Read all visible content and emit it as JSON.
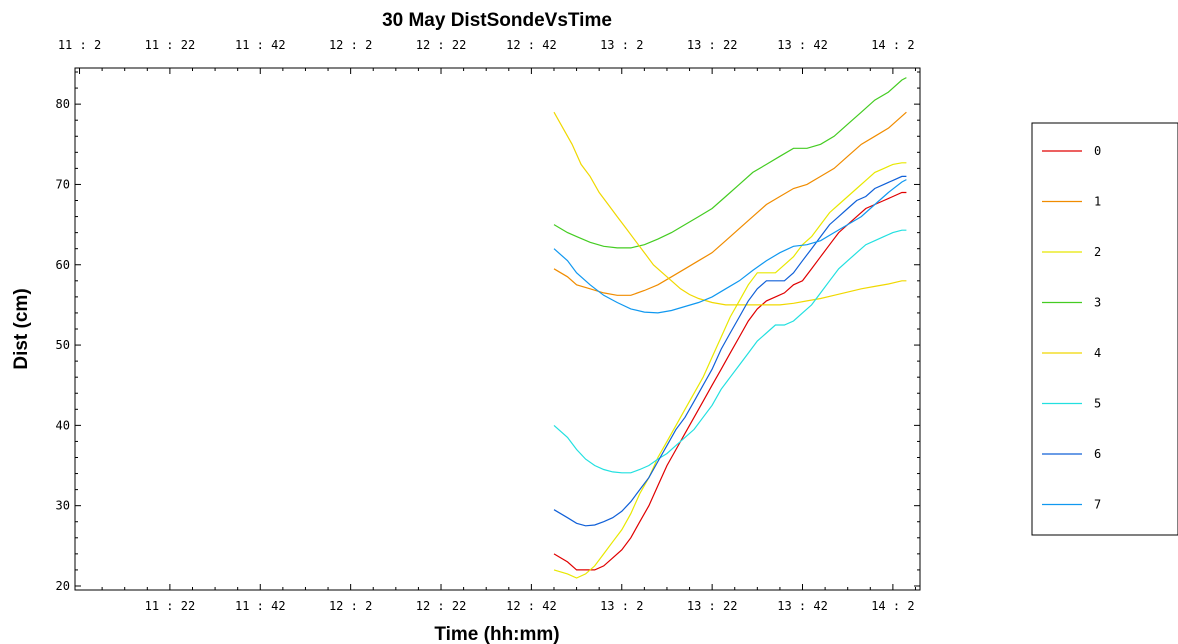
{
  "chart_data": {
    "type": "line",
    "title": "30 May DistSondeVsTime",
    "xlabel": "Time (hh:mm)",
    "ylabel": "Dist (cm)",
    "x_tick_labels": [
      "11 : 22",
      "11 : 42",
      "12 : 2",
      "12 : 22",
      "12 : 42",
      "13 : 2",
      "13 : 22",
      "13 : 42",
      "14 : 2"
    ],
    "x_tick_labels_top": [
      "11 : 2",
      "11 : 22",
      "11 : 42",
      "12 : 2",
      "12 : 22",
      "12 : 42",
      "13 : 2",
      "13 : 22",
      "13 : 42",
      "14 : 2"
    ],
    "y_tick_labels": [
      "20",
      "30",
      "40",
      "50",
      "60",
      "70",
      "80"
    ],
    "xlim": [
      "11:01",
      "14:08"
    ],
    "ylim": [
      19.5,
      84.5
    ],
    "grid": false,
    "legend_position": "right",
    "series": [
      {
        "name": "0",
        "color": "#e00000",
        "x": [
          "12:47",
          "12:50",
          "12:52",
          "12:54",
          "12:56",
          "12:58",
          "13:00",
          "13:02",
          "13:04",
          "13:06",
          "13:08",
          "13:10",
          "13:12",
          "13:14",
          "13:16",
          "13:18",
          "13:20",
          "13:22",
          "13:24",
          "13:26",
          "13:28",
          "13:30",
          "13:32",
          "13:34",
          "13:36",
          "13:38",
          "13:40",
          "13:42",
          "13:44",
          "13:46",
          "13:48",
          "13:50",
          "13:52",
          "13:54",
          "13:56",
          "13:58",
          "14:00",
          "14:02",
          "14:04",
          "14:05"
        ],
        "y": [
          24,
          23,
          22,
          22,
          22,
          22.5,
          23.5,
          24.5,
          26,
          28,
          30,
          32.5,
          35,
          37,
          39,
          41,
          43,
          45,
          47,
          49,
          51,
          53,
          54.5,
          55.5,
          56,
          56.5,
          57.5,
          58,
          59.5,
          61,
          62.5,
          64,
          65,
          66,
          67,
          67.5,
          68,
          68.5,
          69,
          69
        ]
      },
      {
        "name": "1",
        "color": "#f08c00",
        "x": [
          "12:47",
          "12:50",
          "12:52",
          "12:55",
          "12:58",
          "13:01",
          "13:04",
          "13:07",
          "13:10",
          "13:13",
          "13:16",
          "13:19",
          "13:22",
          "13:25",
          "13:28",
          "13:31",
          "13:34",
          "13:37",
          "13:40",
          "13:43",
          "13:46",
          "13:49",
          "13:52",
          "13:55",
          "13:58",
          "14:01",
          "14:04",
          "14:05"
        ],
        "y": [
          59.5,
          58.5,
          57.5,
          57,
          56.5,
          56.2,
          56.2,
          56.8,
          57.5,
          58.5,
          59.5,
          60.5,
          61.5,
          63,
          64.5,
          66,
          67.5,
          68.5,
          69.5,
          70,
          71,
          72,
          73.5,
          75,
          76,
          77,
          78.5,
          79
        ]
      },
      {
        "name": "2",
        "color": "#e8e800",
        "x": [
          "12:47",
          "12:50",
          "12:52",
          "12:54",
          "12:56",
          "12:58",
          "13:00",
          "13:02",
          "13:04",
          "13:06",
          "13:08",
          "13:10",
          "13:12",
          "13:14",
          "13:16",
          "13:18",
          "13:20",
          "13:22",
          "13:24",
          "13:26",
          "13:28",
          "13:30",
          "13:32",
          "13:34",
          "13:36",
          "13:38",
          "13:40",
          "13:42",
          "13:44",
          "13:46",
          "13:48",
          "13:50",
          "13:52",
          "13:54",
          "13:56",
          "13:58",
          "14:00",
          "14:02",
          "14:04",
          "14:05"
        ],
        "y": [
          22,
          21.5,
          21,
          21.5,
          22.5,
          24,
          25.5,
          27,
          29,
          31.5,
          33.5,
          36,
          38,
          40,
          42,
          44,
          46,
          48.5,
          51,
          53.5,
          55.5,
          57.5,
          59,
          59,
          59,
          60,
          61,
          62.5,
          63.5,
          65,
          66.5,
          67.5,
          68.5,
          69.5,
          70.5,
          71.5,
          72,
          72.5,
          72.7,
          72.7
        ]
      },
      {
        "name": "3",
        "color": "#44cc22",
        "x": [
          "12:47",
          "12:50",
          "12:52",
          "12:55",
          "12:58",
          "13:01",
          "13:04",
          "13:07",
          "13:10",
          "13:13",
          "13:16",
          "13:19",
          "13:22",
          "13:25",
          "13:28",
          "13:31",
          "13:34",
          "13:37",
          "13:40",
          "13:43",
          "13:46",
          "13:49",
          "13:52",
          "13:55",
          "13:58",
          "14:01",
          "14:04",
          "14:05"
        ],
        "y": [
          65,
          64,
          63.5,
          62.8,
          62.3,
          62.1,
          62.1,
          62.5,
          63.2,
          64,
          65,
          66,
          67,
          68.5,
          70,
          71.5,
          72.5,
          73.5,
          74.5,
          74.5,
          75,
          76,
          77.5,
          79,
          80.5,
          81.5,
          83,
          83.3
        ]
      },
      {
        "name": "4",
        "color": "#f0d800",
        "x": [
          "12:47",
          "12:49",
          "12:51",
          "12:53",
          "12:55",
          "12:57",
          "12:59",
          "13:01",
          "13:03",
          "13:05",
          "13:07",
          "13:09",
          "13:11",
          "13:13",
          "13:15",
          "13:17",
          "13:19",
          "13:22",
          "13:25",
          "13:28",
          "13:31",
          "13:34",
          "13:37",
          "13:40",
          "13:43",
          "13:46",
          "13:49",
          "13:52",
          "13:55",
          "13:58",
          "14:01",
          "14:04",
          "14:05"
        ],
        "y": [
          79,
          77,
          75,
          72.5,
          71,
          69,
          67.5,
          66,
          64.5,
          63,
          61.5,
          60,
          59,
          58,
          57,
          56.3,
          55.8,
          55.3,
          55,
          55,
          55,
          55,
          55,
          55.2,
          55.5,
          55.8,
          56.2,
          56.6,
          57,
          57.3,
          57.6,
          58,
          58
        ]
      },
      {
        "name": "5",
        "color": "#22e0e0",
        "x": [
          "12:47",
          "12:50",
          "12:52",
          "12:54",
          "12:56",
          "12:58",
          "13:00",
          "13:02",
          "13:04",
          "13:06",
          "13:08",
          "13:10",
          "13:12",
          "13:14",
          "13:16",
          "13:18",
          "13:20",
          "13:22",
          "13:24",
          "13:26",
          "13:28",
          "13:30",
          "13:32",
          "13:34",
          "13:36",
          "13:38",
          "13:40",
          "13:42",
          "13:44",
          "13:46",
          "13:48",
          "13:50",
          "13:52",
          "13:54",
          "13:56",
          "13:58",
          "14:00",
          "14:02",
          "14:04",
          "14:05"
        ],
        "y": [
          40,
          38.5,
          37,
          35.8,
          35,
          34.5,
          34.2,
          34.1,
          34.1,
          34.5,
          35,
          35.8,
          36.5,
          37.5,
          38.5,
          39.5,
          41,
          42.5,
          44.5,
          46,
          47.5,
          49,
          50.5,
          51.5,
          52.5,
          52.5,
          53,
          54,
          55,
          56.5,
          58,
          59.5,
          60.5,
          61.5,
          62.5,
          63,
          63.5,
          64,
          64.3,
          64.3
        ]
      },
      {
        "name": "6",
        "color": "#1060d8",
        "x": [
          "12:47",
          "12:50",
          "12:52",
          "12:54",
          "12:56",
          "12:58",
          "13:00",
          "13:02",
          "13:04",
          "13:06",
          "13:08",
          "13:10",
          "13:12",
          "13:14",
          "13:16",
          "13:18",
          "13:20",
          "13:22",
          "13:24",
          "13:26",
          "13:28",
          "13:30",
          "13:32",
          "13:34",
          "13:36",
          "13:38",
          "13:40",
          "13:42",
          "13:44",
          "13:46",
          "13:48",
          "13:50",
          "13:52",
          "13:54",
          "13:56",
          "13:58",
          "14:00",
          "14:02",
          "14:04",
          "14:05"
        ],
        "y": [
          29.5,
          28.5,
          27.8,
          27.5,
          27.6,
          28,
          28.5,
          29.3,
          30.5,
          32,
          33.5,
          35.5,
          37.5,
          39.5,
          41,
          43,
          45,
          47,
          49.5,
          51.5,
          53.5,
          55.5,
          57,
          58,
          58,
          58,
          59,
          60.5,
          62,
          63.5,
          65,
          66,
          67,
          68,
          68.5,
          69.5,
          70,
          70.5,
          71,
          71
        ]
      },
      {
        "name": "7",
        "color": "#1098f0",
        "x": [
          "12:47",
          "12:50",
          "12:52",
          "12:55",
          "12:58",
          "13:01",
          "13:04",
          "13:07",
          "13:10",
          "13:13",
          "13:16",
          "13:19",
          "13:22",
          "13:25",
          "13:28",
          "13:31",
          "13:34",
          "13:37",
          "13:40",
          "13:43",
          "13:46",
          "13:49",
          "13:52",
          "13:55",
          "13:58",
          "14:01",
          "14:04",
          "14:05"
        ],
        "y": [
          62,
          60.5,
          59,
          57.5,
          56.2,
          55.3,
          54.5,
          54.1,
          54,
          54.3,
          54.8,
          55.3,
          56,
          57,
          58,
          59.3,
          60.5,
          61.5,
          62.3,
          62.5,
          63,
          64,
          65,
          66,
          67.5,
          69,
          70.3,
          70.6
        ]
      }
    ]
  }
}
